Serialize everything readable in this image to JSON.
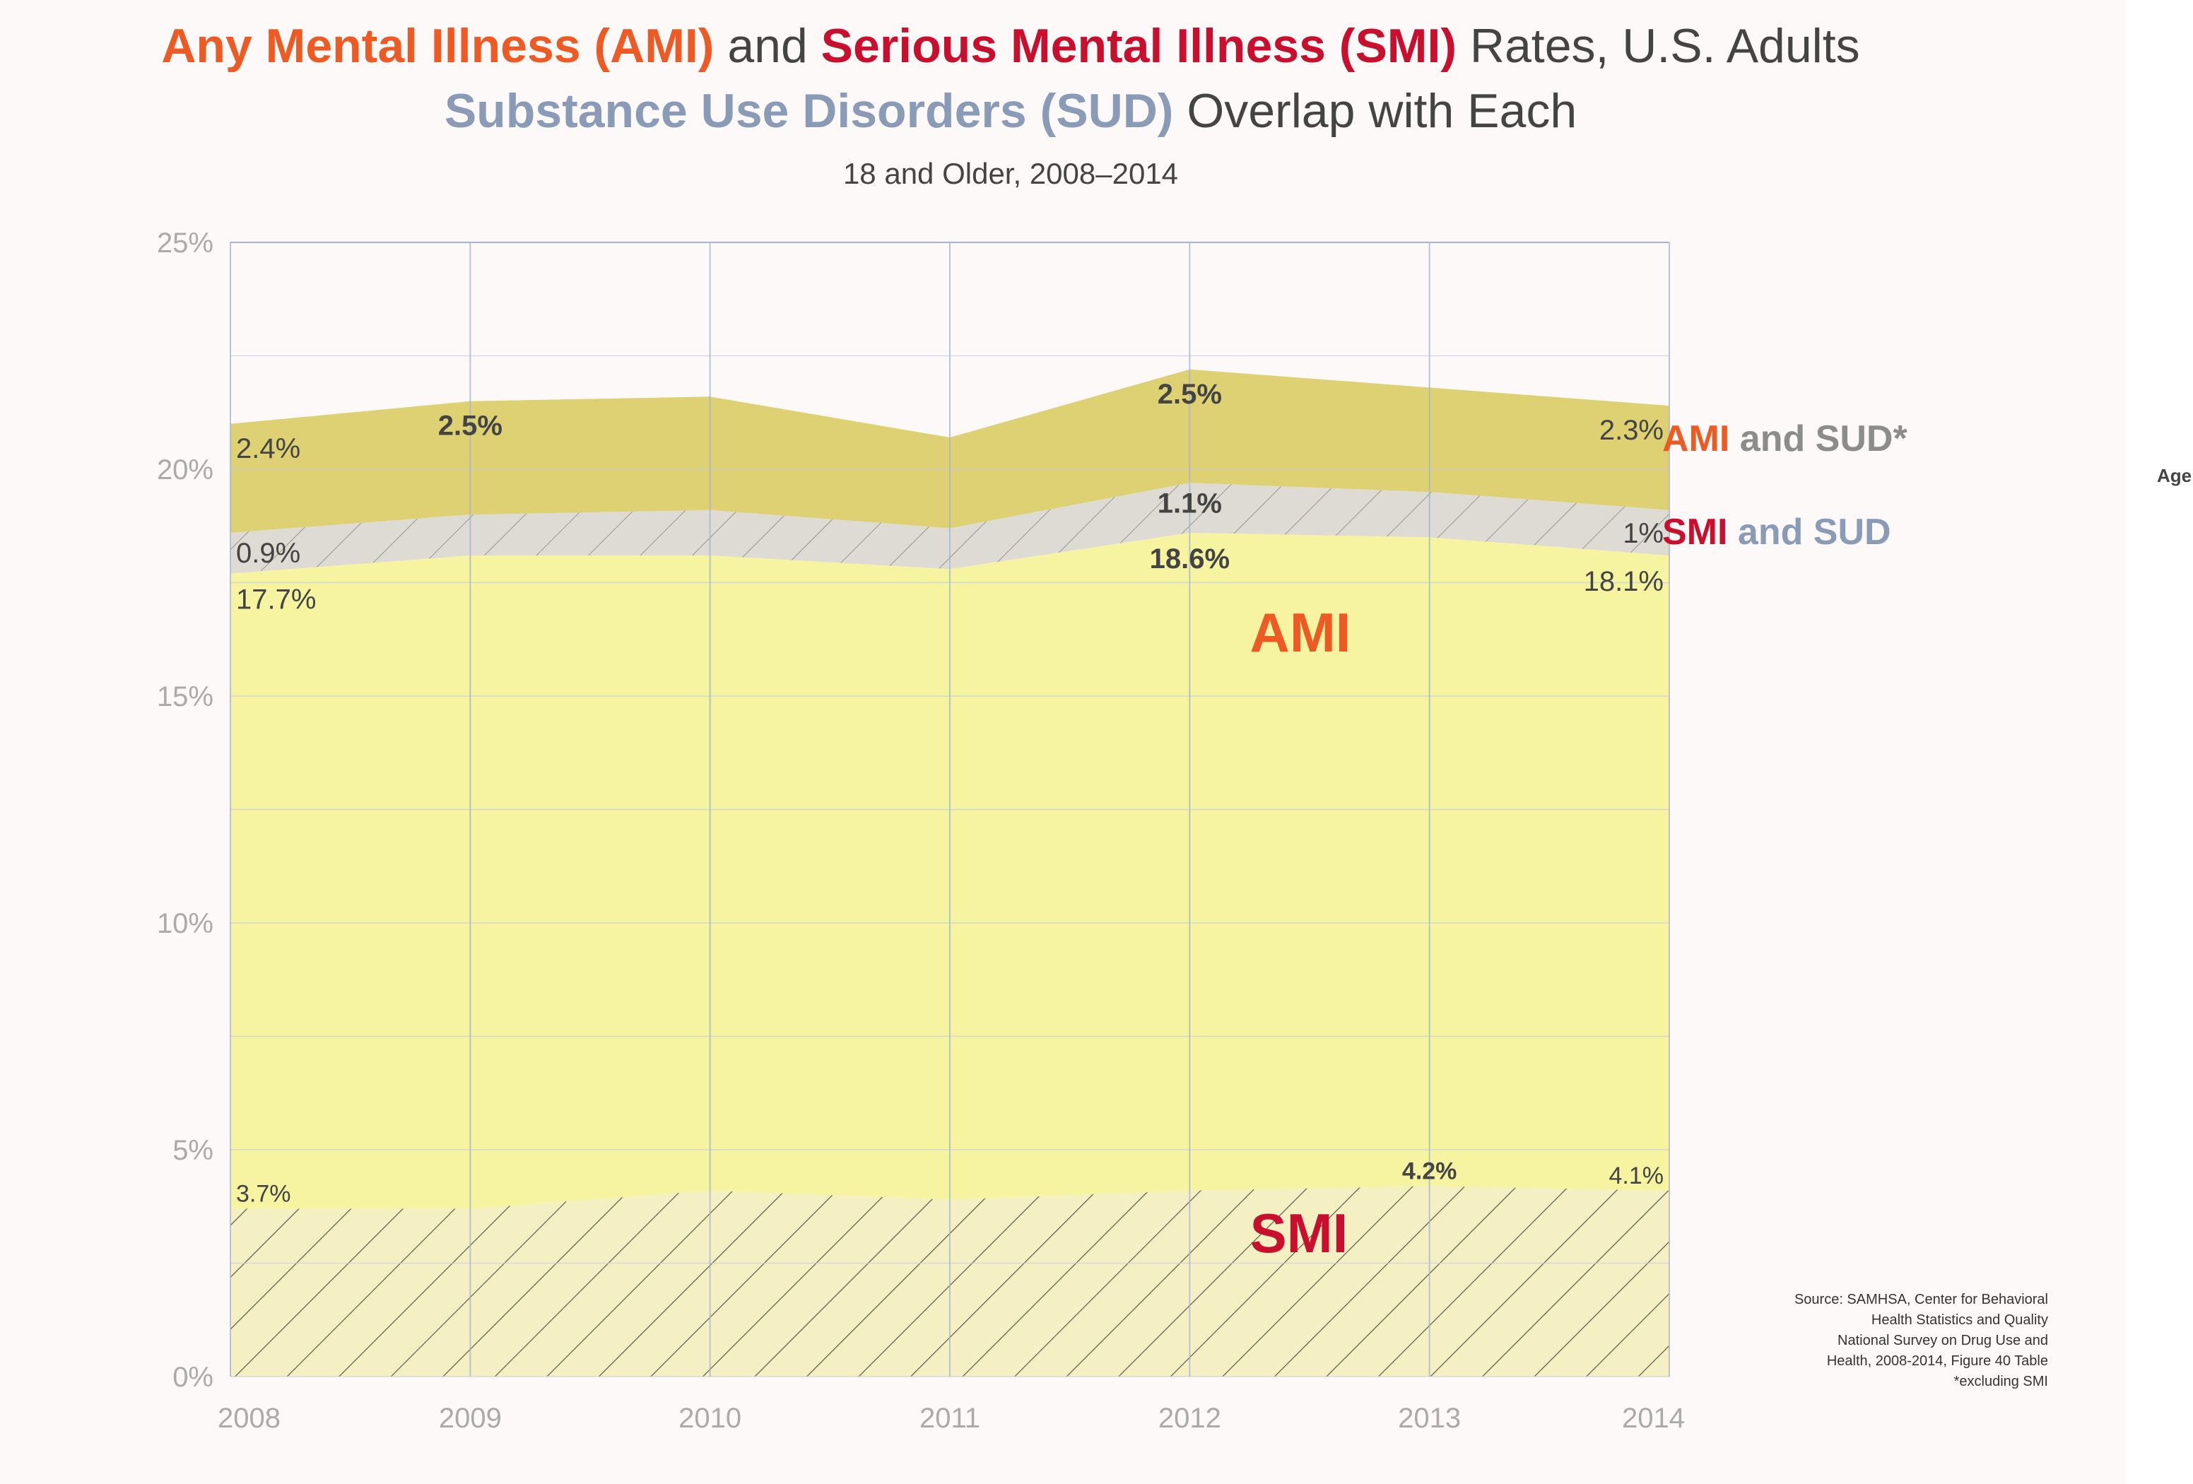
{
  "colors": {
    "ami": "#ee5a24",
    "smi": "#c8102e",
    "sud": "#8a9bb8",
    "text": "#444444",
    "and_sud_gray": "#8c8c8c",
    "fill_ami": "#f6f3a1",
    "fill_ami_sud": "#ddd173",
    "fill_smi_sud": "#dedad4",
    "fill_smi": "#f4f0c4"
  },
  "title": {
    "line1": {
      "ami": "Any Mental Illness (AMI)",
      "and": " and ",
      "smi": "Serious Mental Illness (SMI)",
      "rest": " Rates, U.S. Adults"
    },
    "line2": {
      "sud": "Substance Use Disorders (SUD)",
      "rest": " Overlap with Each"
    },
    "subtitle": "18 and Older, 2008–2014"
  },
  "legend": {
    "ami_sud": {
      "a": "AMI",
      "b": " and SUD*"
    },
    "smi_sud": {
      "a": "SMI",
      "b": " and SUD"
    },
    "cut_text": "Age"
  },
  "in_chart_labels": {
    "ami": "AMI",
    "smi": "SMI"
  },
  "source": [
    "Source: SAMHSA, Center for Behavioral",
    "Health Statistics and Quality",
    "National Survey on Drug Use and",
    "Health, 2008-2014, Figure 40 Table",
    "*excluding SMI"
  ],
  "chart_data": {
    "type": "area",
    "stacked": true,
    "x": [
      2008,
      2009,
      2010,
      2011,
      2012,
      2013,
      2014
    ],
    "ylim": [
      0,
      25
    ],
    "y_ticks": [
      "0%",
      "5%",
      "10%",
      "15%",
      "20%",
      "25%"
    ],
    "x_ticks": [
      "2008",
      "2009",
      "2010",
      "2011",
      "2012",
      "2013",
      "2014"
    ],
    "grid": true,
    "series": [
      {
        "name": "SMI",
        "values": [
          3.7,
          3.7,
          4.1,
          3.9,
          4.1,
          4.2,
          4.1
        ]
      },
      {
        "name": "AMI",
        "values": [
          14.0,
          14.4,
          14.0,
          13.9,
          14.5,
          14.3,
          14.0
        ]
      },
      {
        "name": "SMI and SUD",
        "values": [
          0.9,
          0.9,
          1.0,
          0.9,
          1.1,
          1.0,
          1.0
        ]
      },
      {
        "name": "AMI and SUD*",
        "values": [
          2.4,
          2.5,
          2.5,
          2.0,
          2.5,
          2.3,
          2.3
        ]
      }
    ],
    "data_labels": [
      {
        "x": 2008,
        "y": 3.7,
        "text": "3.7%"
      },
      {
        "x": 2013,
        "y": 4.2,
        "text": "4.2%"
      },
      {
        "x": 2014,
        "y": 4.1,
        "text": "4.1%"
      },
      {
        "x": 2008,
        "y": 17.7,
        "text": "17.7%"
      },
      {
        "x": 2012,
        "y": 18.6,
        "text": "18.6%"
      },
      {
        "x": 2014,
        "y": 18.1,
        "text": "18.1%"
      },
      {
        "x": 2008,
        "y": 0.9,
        "text": "0.9%"
      },
      {
        "x": 2012,
        "y": 1.1,
        "text": "1.1%"
      },
      {
        "x": 2014,
        "y": 1.0,
        "text": "1%"
      },
      {
        "x": 2008,
        "y": 2.4,
        "text": "2.4%"
      },
      {
        "x": 2009,
        "y": 2.5,
        "text": "2.5%"
      },
      {
        "x": 2012,
        "y": 2.5,
        "text": "2.5%"
      },
      {
        "x": 2014,
        "y": 2.3,
        "text": "2.3%"
      }
    ]
  }
}
